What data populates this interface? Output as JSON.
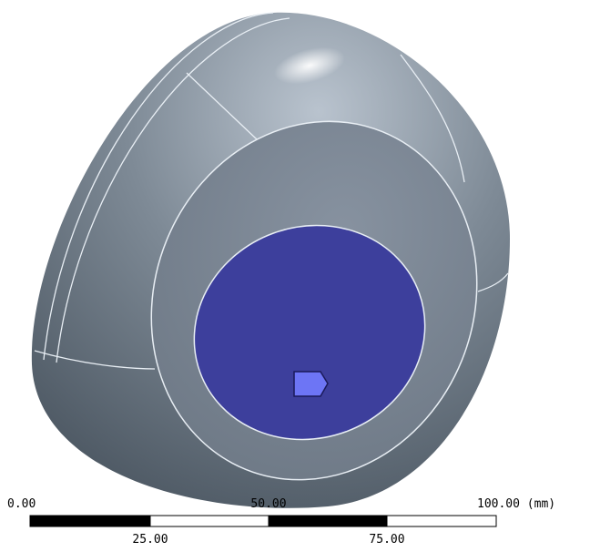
{
  "scale_bar": {
    "top_labels": [
      "0.00",
      "50.00",
      "100.00 (mm)"
    ],
    "bottom_labels": [
      "25.00",
      "75.00"
    ]
  }
}
